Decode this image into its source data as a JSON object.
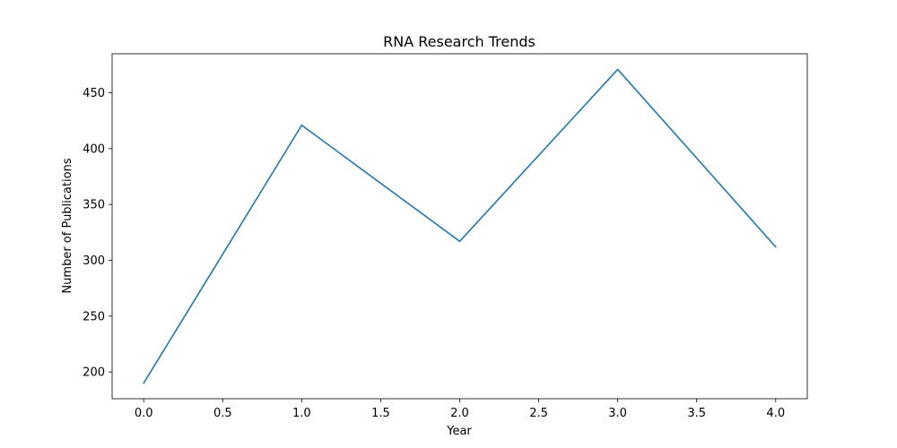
{
  "chart_data": {
    "type": "line",
    "title": "RNA Research Trends",
    "xlabel": "Year",
    "ylabel": "Number of Publications",
    "xlim": [
      -0.2,
      4.2
    ],
    "ylim": [
      176,
      485
    ],
    "x_ticks": [
      0.0,
      0.5,
      1.0,
      1.5,
      2.0,
      2.5,
      3.0,
      3.5,
      4.0
    ],
    "x_tick_labels": [
      "0.0",
      "0.5",
      "1.0",
      "1.5",
      "2.0",
      "2.5",
      "3.0",
      "3.5",
      "4.0"
    ],
    "y_ticks": [
      200,
      250,
      300,
      350,
      400,
      450
    ],
    "y_tick_labels": [
      "200",
      "250",
      "300",
      "350",
      "400",
      "450"
    ],
    "grid": false,
    "series": [
      {
        "color": "#1f77b4",
        "x": [
          0,
          1,
          2,
          3,
          4
        ],
        "values": [
          190,
          421,
          317,
          471,
          312
        ]
      }
    ]
  }
}
